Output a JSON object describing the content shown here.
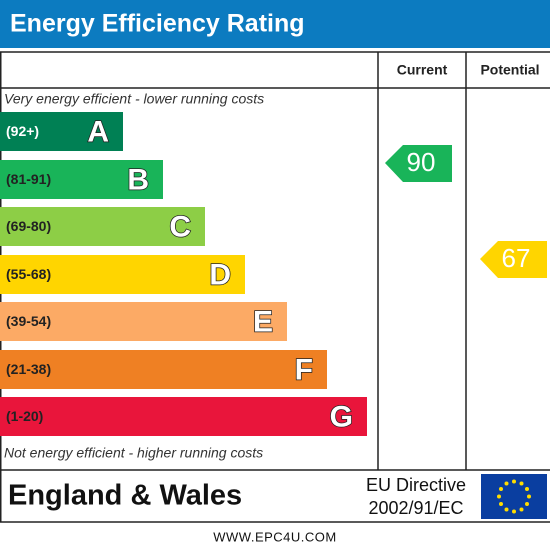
{
  "header": {
    "title": "Energy Efficiency Rating"
  },
  "columns": {
    "current": "Current",
    "potential": "Potential"
  },
  "top_note": "Very energy efficient - lower running costs",
  "bottom_note": "Not energy efficient - higher running costs",
  "bands": [
    {
      "range": "(92+)",
      "letter": "A",
      "color": "#008054"
    },
    {
      "range": "(81-91)",
      "letter": "B",
      "color": "#19b459"
    },
    {
      "range": "(69-80)",
      "letter": "C",
      "color": "#8dce46"
    },
    {
      "range": "(55-68)",
      "letter": "D",
      "color": "#ffd500"
    },
    {
      "range": "(39-54)",
      "letter": "E",
      "color": "#fcaa65"
    },
    {
      "range": "(21-38)",
      "letter": "F",
      "color": "#ef8023"
    },
    {
      "range": "(1-20)",
      "letter": "G",
      "color": "#e9153b"
    }
  ],
  "current": {
    "value": "90",
    "color": "#19b459"
  },
  "potential": {
    "value": "67",
    "color": "#ffd500"
  },
  "footer": {
    "region": "England & Wales",
    "directive_line1": "EU Directive",
    "directive_line2": "2002/91/EC"
  },
  "website": "WWW.EPC4U.COM"
}
